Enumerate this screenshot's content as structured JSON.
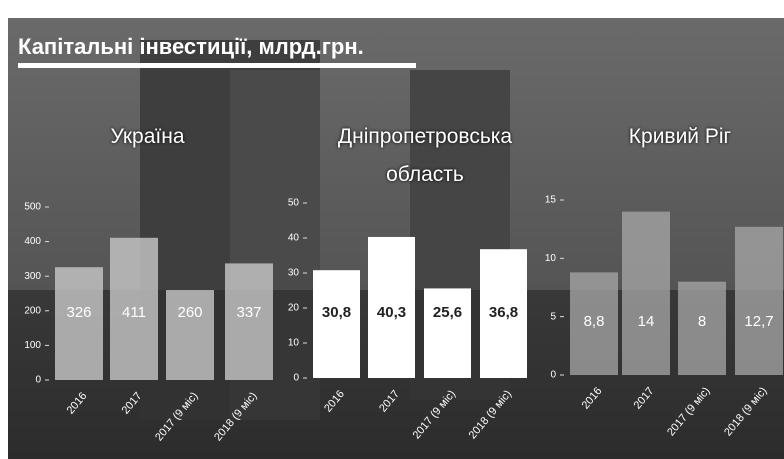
{
  "title": "Капітальні інвестиції, млрд.грн.",
  "chart_data": [
    {
      "type": "bar",
      "title": "Україна",
      "categories": [
        "2016",
        "2017",
        "2017 (9 міс)",
        "2018 (9 міс)"
      ],
      "values": [
        326,
        411,
        260,
        337
      ],
      "color": "#c8c8c8",
      "ylim": [
        0,
        500
      ],
      "yticks": [
        0,
        100,
        200,
        300,
        400,
        500
      ]
    },
    {
      "type": "bar",
      "title": "Дніпропетровська область",
      "categories": [
        "2016",
        "2017",
        "2017 (9 міс)",
        "2018 (9 міс)"
      ],
      "values": [
        30.8,
        40.3,
        25.6,
        36.8
      ],
      "value_labels": [
        "30,8",
        "40,3",
        "25,6",
        "36,8"
      ],
      "color": "#ffffff",
      "ylim": [
        0,
        50
      ],
      "yticks": [
        0,
        10,
        20,
        30,
        40,
        50
      ]
    },
    {
      "type": "bar",
      "title": "Кривий Ріг",
      "categories": [
        "2016",
        "2017",
        "2017 (9 міс)",
        "2018 (9 міс)"
      ],
      "values": [
        8.8,
        14,
        8,
        12.7
      ],
      "value_labels": [
        "8,8",
        "14",
        "8",
        "12,7"
      ],
      "color": "#a8a8a8",
      "ylim": [
        0,
        15
      ],
      "yticks": [
        0,
        5,
        10,
        15
      ]
    }
  ]
}
